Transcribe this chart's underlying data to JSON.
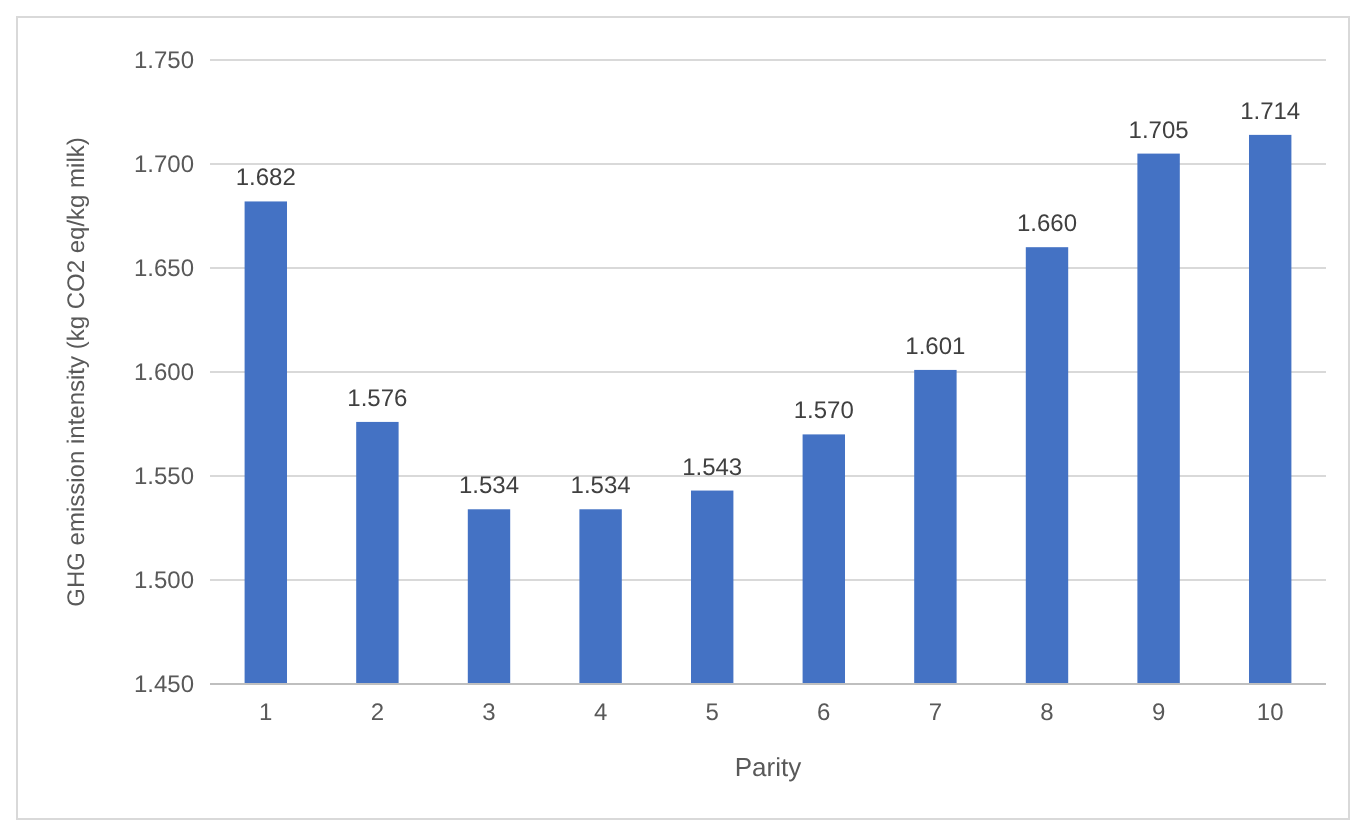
{
  "chart_data": {
    "type": "bar",
    "xlabel": "Parity",
    "ylabel": "GHG emission intensity (kg CO2 eq/kg milk)",
    "categories": [
      "1",
      "2",
      "3",
      "4",
      "5",
      "6",
      "7",
      "8",
      "9",
      "10"
    ],
    "values": [
      1.682,
      1.576,
      1.534,
      1.534,
      1.543,
      1.57,
      1.601,
      1.66,
      1.705,
      1.714
    ],
    "value_labels": [
      "1.682",
      "1.576",
      "1.534",
      "1.534",
      "1.543",
      "1.570",
      "1.601",
      "1.660",
      "1.705",
      "1.714"
    ],
    "color": "#4472c4",
    "ylim": [
      1.45,
      1.75
    ],
    "yticks": [
      {
        "value": 1.45,
        "label": "1.450"
      },
      {
        "value": 1.5,
        "label": "1.500"
      },
      {
        "value": 1.55,
        "label": "1.550"
      },
      {
        "value": 1.6,
        "label": "1.600"
      },
      {
        "value": 1.65,
        "label": "1.650"
      },
      {
        "value": 1.7,
        "label": "1.700"
      },
      {
        "value": 1.75,
        "label": "1.750"
      }
    ],
    "grid": "y"
  }
}
